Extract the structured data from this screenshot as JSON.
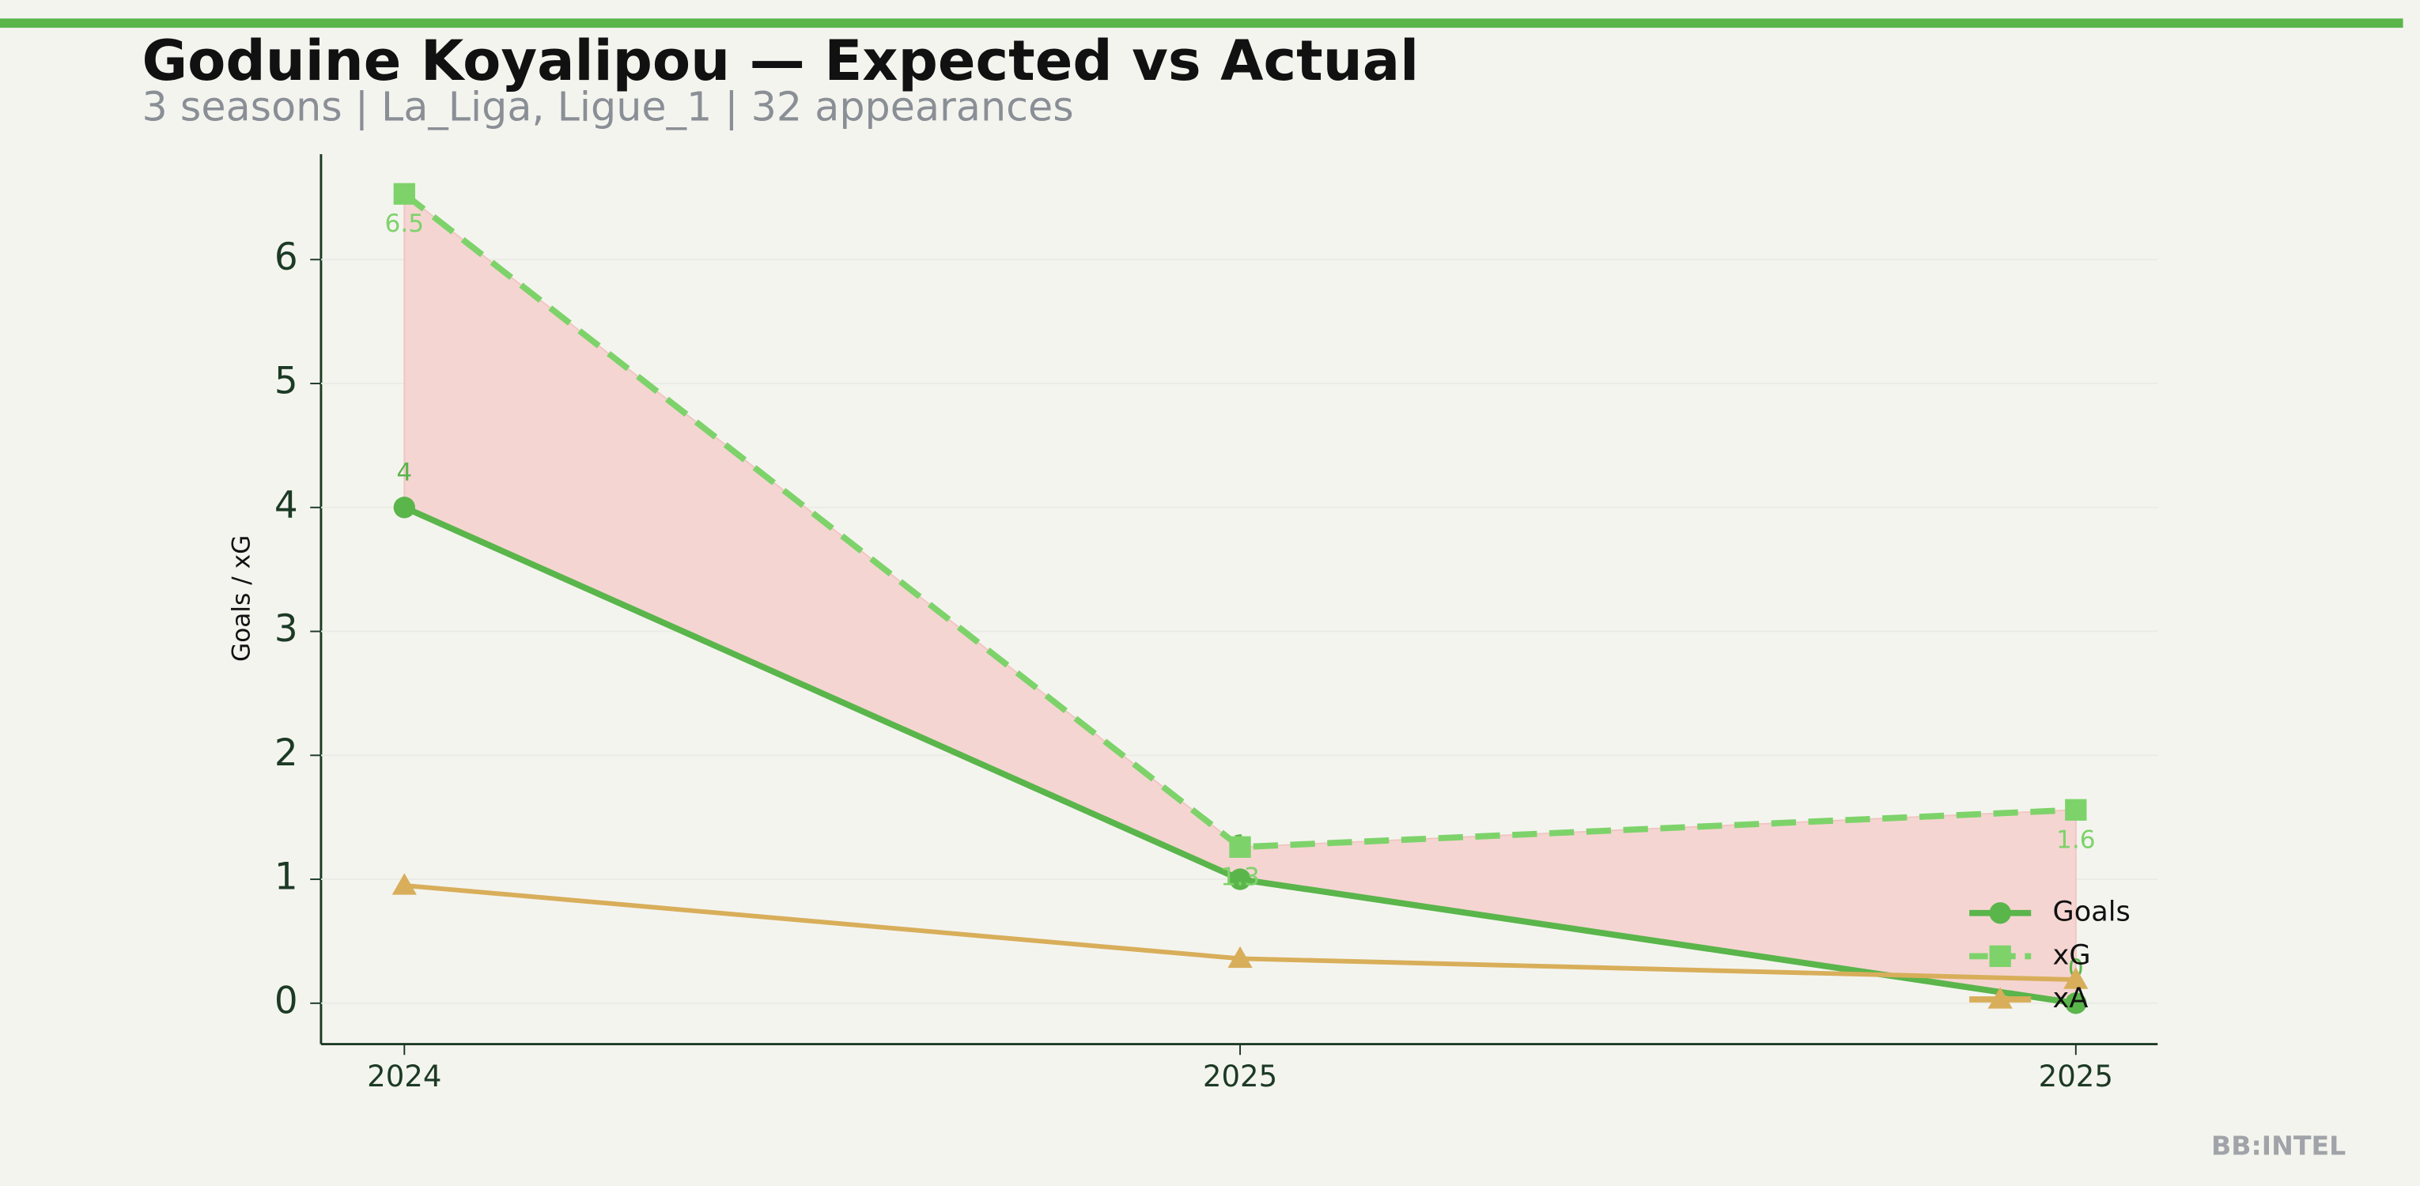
{
  "chart_data": {
    "type": "line",
    "title": "Goduine Koyalipou — Expected vs Actual",
    "subtitle": "3 seasons | La_Liga, Ligue_1 | 32 appearances",
    "y_label": "Goals / xG",
    "footer": "BB:INTEL",
    "categories": [
      "2024",
      "2025",
      "2025"
    ],
    "series": [
      {
        "name": "Goals",
        "color": "#5ab54b",
        "marker": "circle",
        "dash": false,
        "values": [
          4,
          1,
          0
        ]
      },
      {
        "name": "xG",
        "color": "#7dd36a",
        "marker": "square",
        "dash": true,
        "values": [
          6.53,
          1.26,
          1.56
        ],
        "value_labels": [
          "6.5",
          "1.3",
          "1.6"
        ]
      },
      {
        "name": "xA",
        "color": "#d8ae5a",
        "marker": "triangle",
        "dash": false,
        "values": [
          0.95,
          0.36,
          0.19
        ]
      }
    ],
    "fill_between": {
      "series": [
        0,
        1
      ],
      "color": "#f5d5d2"
    },
    "ylim": [
      -0.33,
      6.85
    ],
    "yticks": [
      0,
      1,
      2,
      3,
      4,
      5,
      6
    ],
    "grid": true,
    "legend": "lower right"
  }
}
